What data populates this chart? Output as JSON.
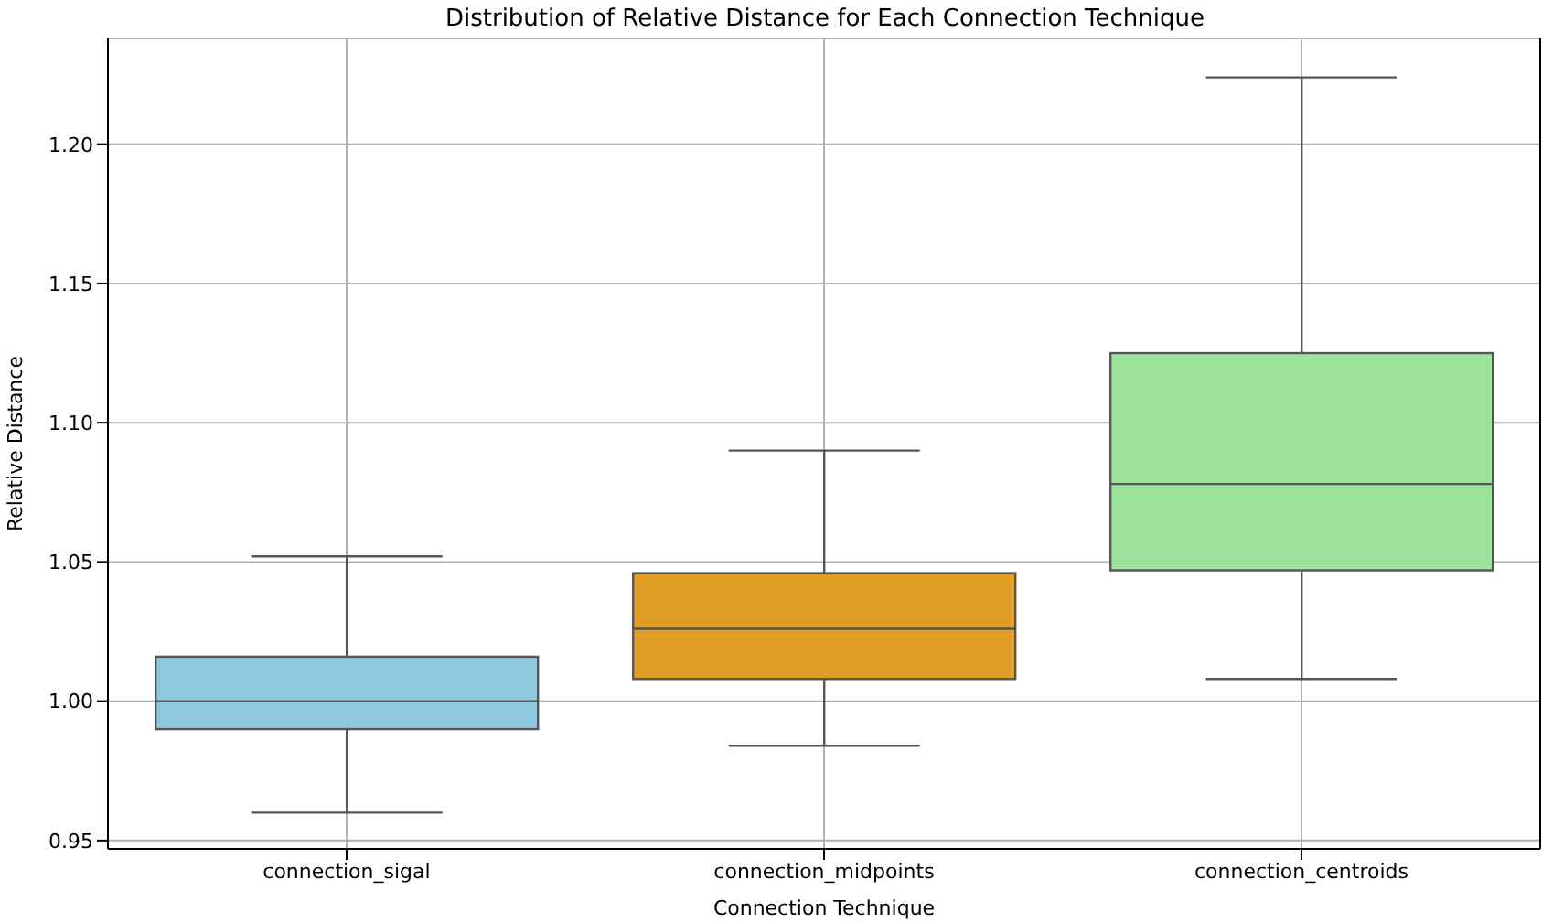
{
  "chart_data": {
    "type": "box",
    "title": "Distribution of Relative Distance for Each Connection Technique",
    "xlabel": "Connection Technique",
    "ylabel": "Relative Distance",
    "categories": [
      "connection_sigal",
      "connection_midpoints",
      "connection_centroids"
    ],
    "colors": [
      "#8ec8de",
      "#e09e24",
      "#9ce39c"
    ],
    "boxes": [
      {
        "low": 0.96,
        "q1": 0.99,
        "median": 1.0,
        "q3": 1.016,
        "high": 1.052
      },
      {
        "low": 0.984,
        "q1": 1.008,
        "median": 1.026,
        "q3": 1.046,
        "high": 1.09
      },
      {
        "low": 1.008,
        "q1": 1.047,
        "median": 1.078,
        "q3": 1.125,
        "high": 1.224
      }
    ],
    "ylim": [
      0.947,
      1.238
    ],
    "yticks": [
      {
        "value": 0.95,
        "label": "0.95"
      },
      {
        "value": 1.0,
        "label": "1.00"
      },
      {
        "value": 1.05,
        "label": "1.05"
      },
      {
        "value": 1.1,
        "label": "1.10"
      },
      {
        "value": 1.15,
        "label": "1.15"
      },
      {
        "value": 1.2,
        "label": "1.20"
      }
    ],
    "grid": true
  }
}
